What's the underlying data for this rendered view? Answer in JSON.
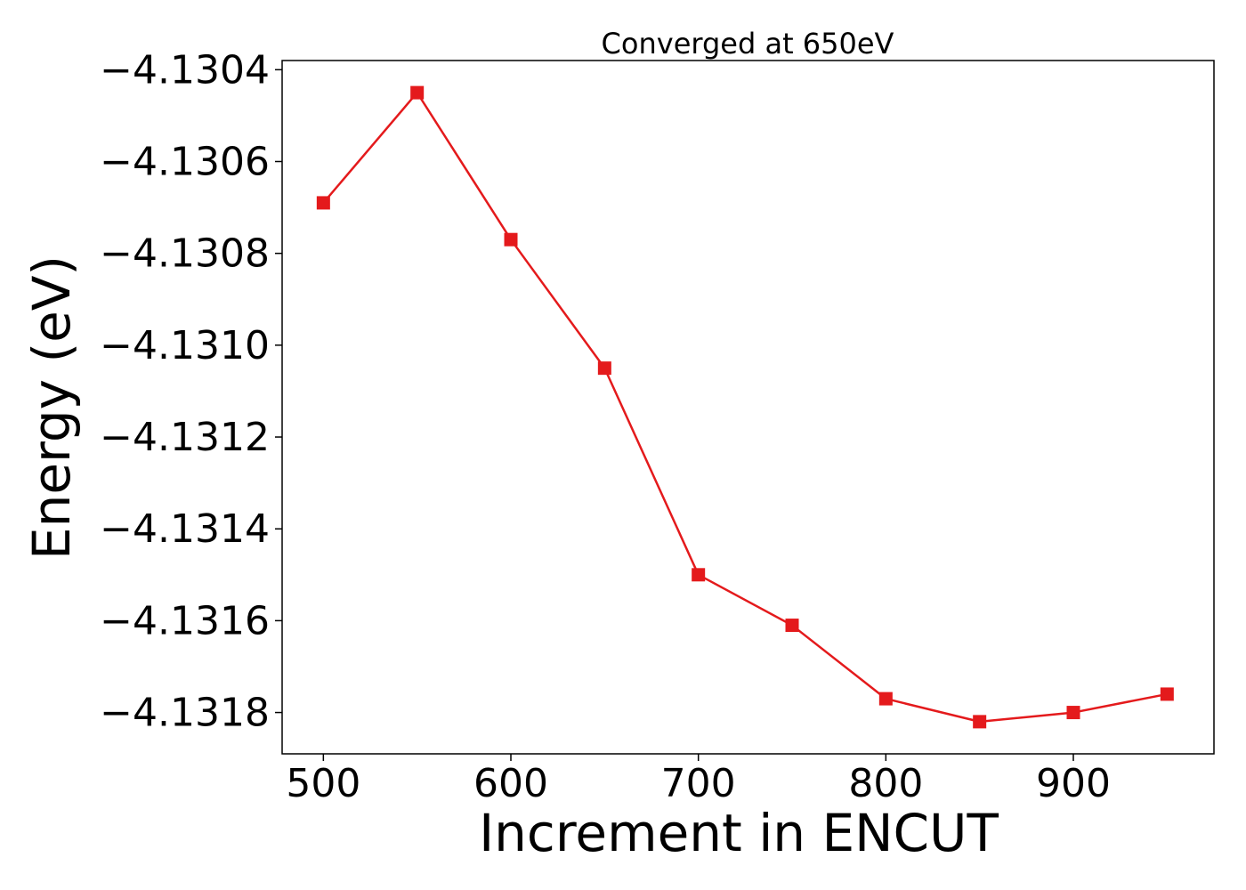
{
  "chart_data": {
    "type": "line",
    "title": "Converged at 650eV",
    "xlabel": "Increment in ENCUT",
    "ylabel": "Energy (eV)",
    "x": [
      500,
      550,
      600,
      650,
      700,
      750,
      800,
      850,
      900,
      950
    ],
    "series": [
      {
        "values": [
          -4.13069,
          -4.13045,
          -4.13077,
          -4.13105,
          -4.1315,
          -4.13161,
          -4.13177,
          -4.13182,
          -4.1318,
          -4.13176
        ],
        "color": "#e41a1c",
        "marker": "square"
      }
    ],
    "xlim": [
      478,
      975
    ],
    "ylim": [
      -4.13189,
      -4.13038
    ],
    "xticks": [
      500,
      600,
      700,
      800,
      900
    ],
    "xtick_labels": [
      "500",
      "600",
      "700",
      "800",
      "900"
    ],
    "yticks": [
      -4.1304,
      -4.1306,
      -4.1308,
      -4.131,
      -4.1312,
      -4.1314,
      -4.1316,
      -4.1318
    ],
    "ytick_labels": [
      "−4.1304",
      "−4.1306",
      "−4.1308",
      "−4.1310",
      "−4.1312",
      "−4.1314",
      "−4.1316",
      "−4.1318"
    ],
    "grid": false,
    "legend": "none"
  }
}
